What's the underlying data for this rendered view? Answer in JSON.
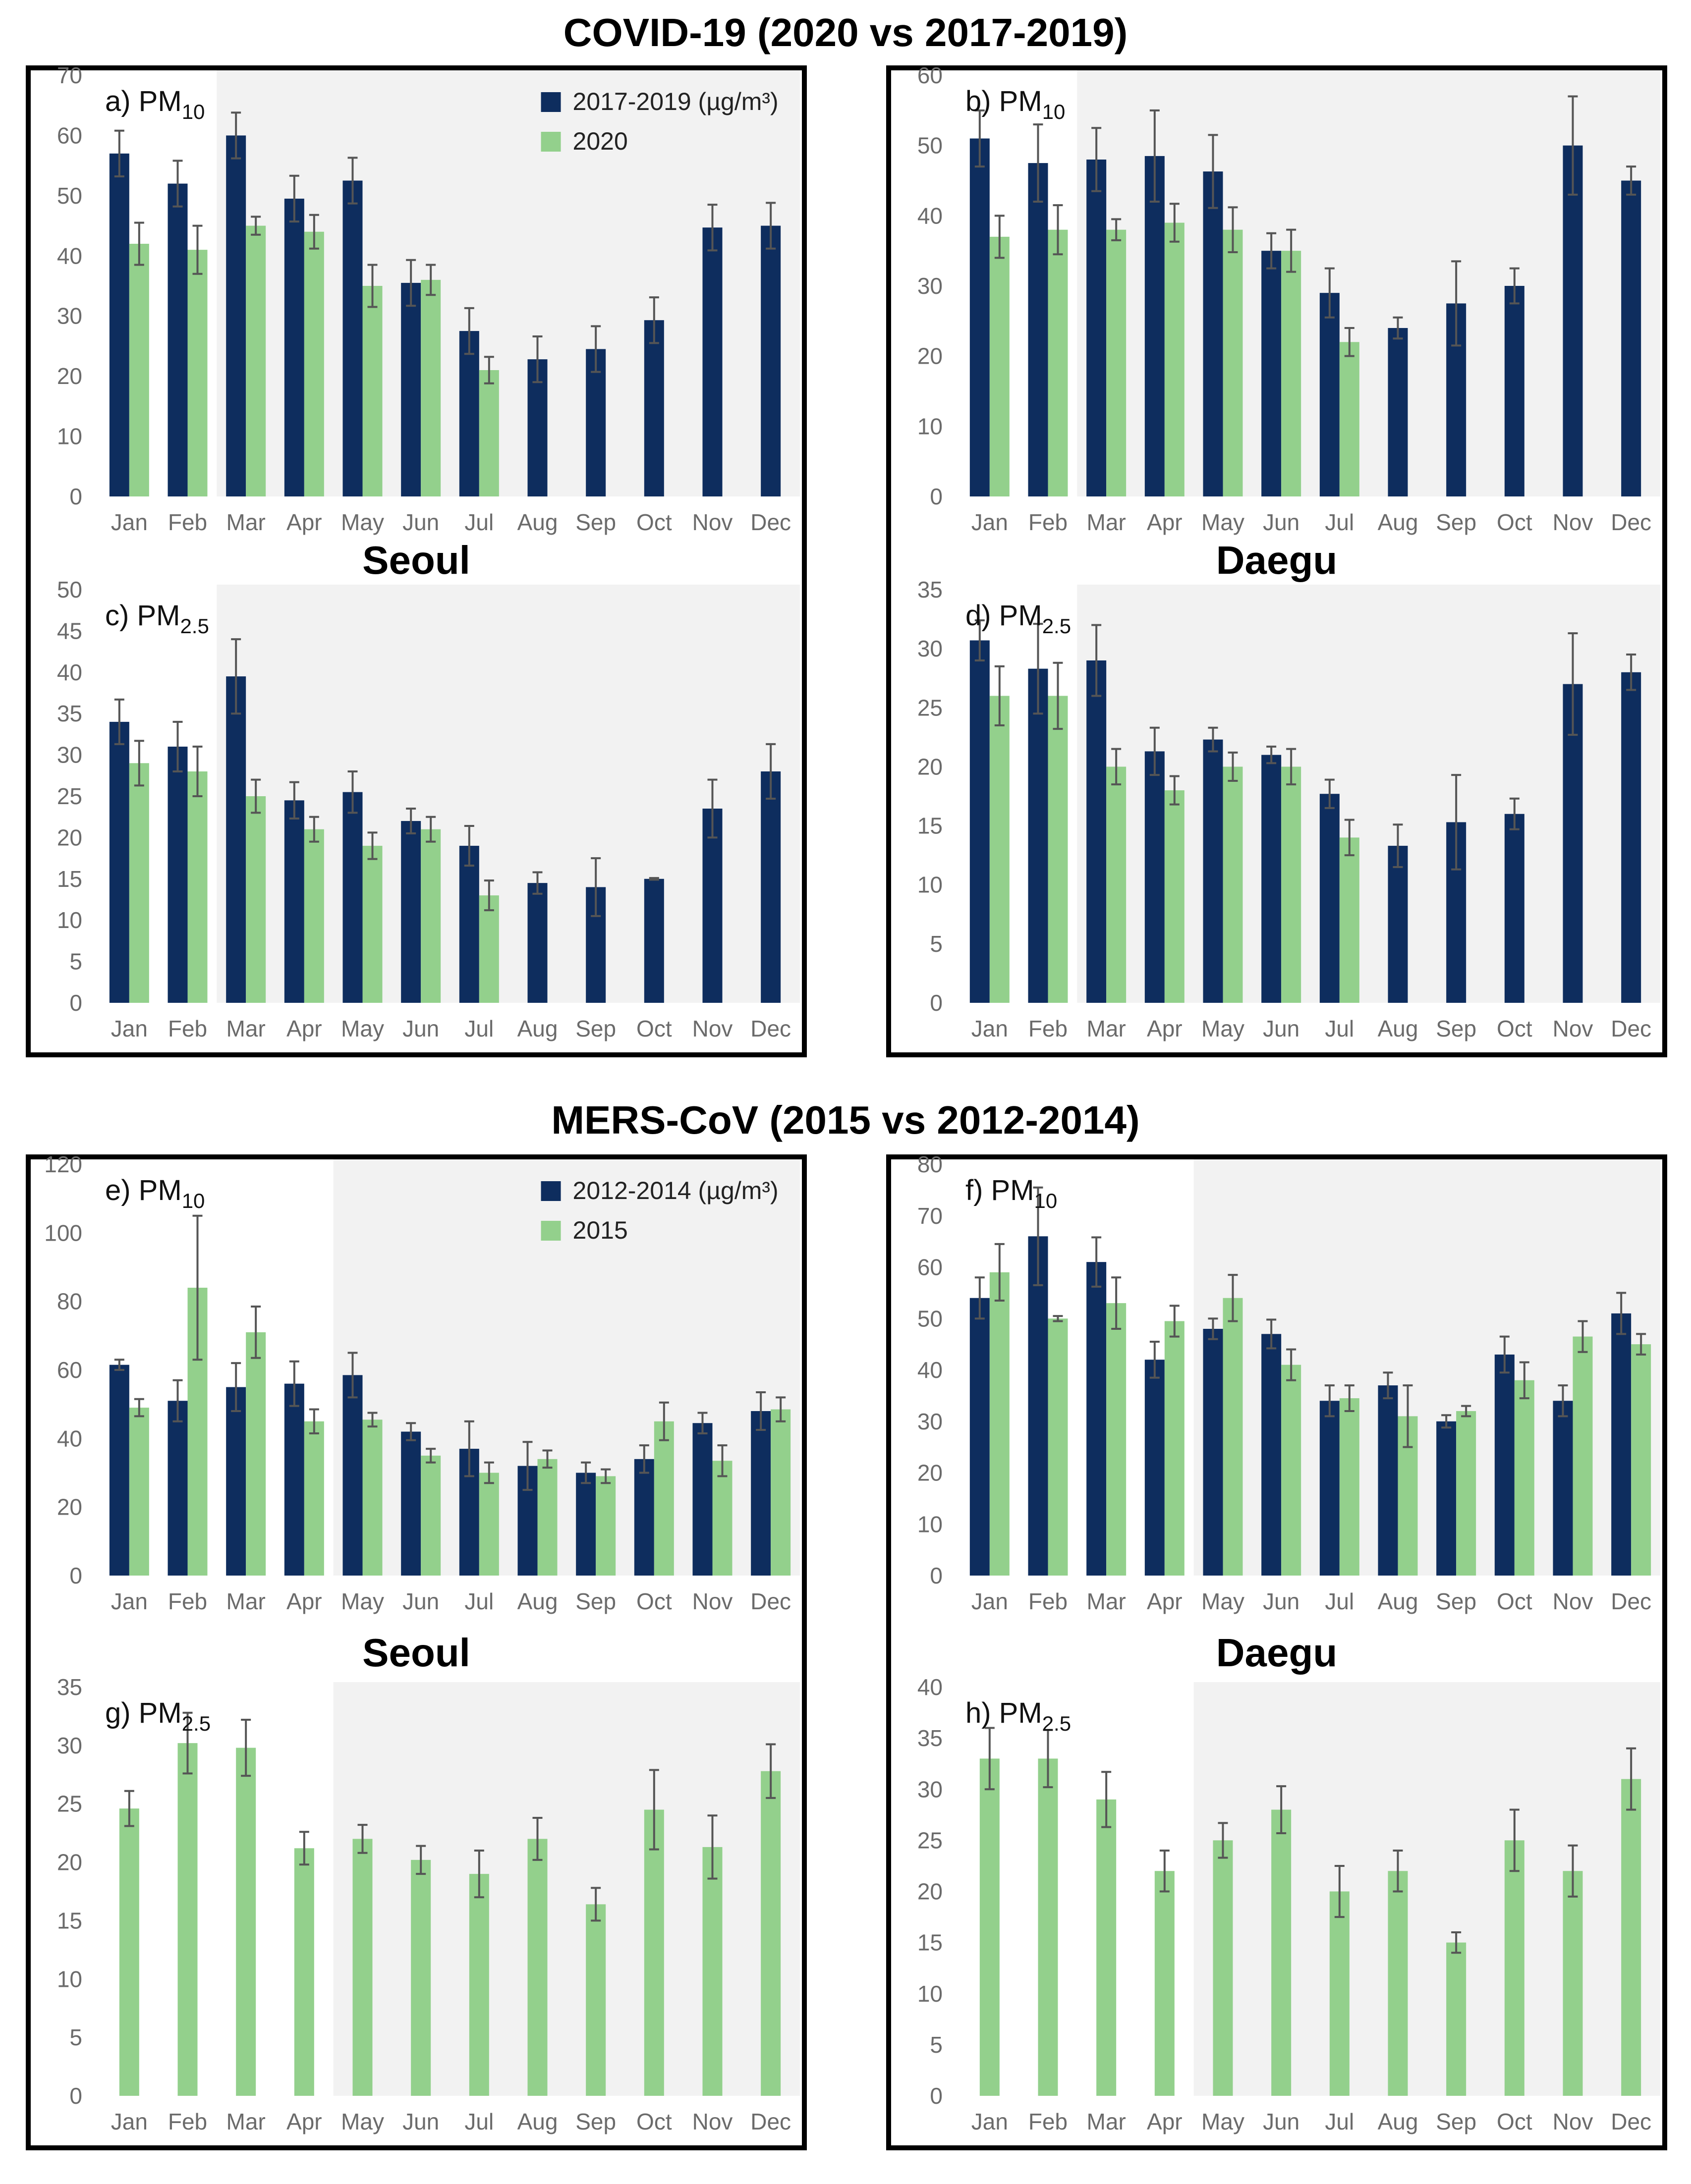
{
  "sections": [
    {
      "title": "COVID-19 (2020 vs 2017-2019)"
    },
    {
      "title": "MERS-CoV (2015 vs 2012-2014)"
    }
  ],
  "cities": [
    "Seoul",
    "Daegu",
    "Seoul",
    "Daegu"
  ],
  "colors": {
    "baseline": "#0e2d5e",
    "event": "#93d08c",
    "shade": "#f2f2f2",
    "error": "#555555"
  },
  "legends": [
    {
      "baseline": "2017-2019 (µg/m³)",
      "event": "2020"
    },
    {
      "baseline": "2012-2014 (µg/m³)",
      "event": "2015"
    }
  ],
  "chart_data": [
    {
      "id": "a",
      "type": "bar",
      "label": "a) PM",
      "sub": "10",
      "categories": [
        "Jan",
        "Feb",
        "Mar",
        "Apr",
        "May",
        "Jun",
        "Jul",
        "Aug",
        "Sep",
        "Oct",
        "Nov",
        "Dec"
      ],
      "ylim": [
        0,
        70
      ],
      "ystep": 10,
      "shade_from": "Mar",
      "legend": 0,
      "series": [
        {
          "values": [
            57,
            52,
            60,
            49.5,
            52.5,
            35.5,
            27.5,
            22.8,
            24.5,
            29.3,
            44.7,
            45
          ],
          "errors": [
            3.8,
            3.8,
            3.8,
            3.8,
            3.8,
            3.8,
            3.8,
            3.8,
            3.8,
            3.8,
            3.8,
            3.8
          ]
        },
        {
          "values": [
            42,
            41,
            45,
            44,
            35,
            36,
            21,
            null,
            null,
            null,
            null,
            null
          ],
          "errors": [
            3.5,
            4,
            1.5,
            2.8,
            3.5,
            2.5,
            2.2,
            null,
            null,
            null,
            null,
            null
          ]
        }
      ]
    },
    {
      "id": "b",
      "type": "bar",
      "label": "b) PM",
      "sub": "10",
      "categories": [
        "Jan",
        "Feb",
        "Mar",
        "Apr",
        "May",
        "Jun",
        "Jul",
        "Aug",
        "Sep",
        "Oct",
        "Nov",
        "Dec"
      ],
      "ylim": [
        0,
        60
      ],
      "ystep": 10,
      "shade_from": "Mar",
      "legend": null,
      "series": [
        {
          "values": [
            51,
            47.5,
            48,
            48.5,
            46.3,
            35,
            29,
            24,
            27.5,
            30,
            50,
            45
          ],
          "errors": [
            4,
            5.5,
            4.5,
            6.5,
            5.2,
            2.5,
            3.5,
            1.5,
            6,
            2.5,
            7,
            2
          ]
        },
        {
          "values": [
            37,
            38,
            38,
            39,
            38,
            35,
            22,
            null,
            null,
            null,
            null,
            null
          ],
          "errors": [
            3,
            3.5,
            1.5,
            2.7,
            3.2,
            3,
            2,
            null,
            null,
            null,
            null,
            null
          ]
        }
      ]
    },
    {
      "id": "c",
      "type": "bar",
      "label": "c) PM",
      "sub": "2.5",
      "categories": [
        "Jan",
        "Feb",
        "Mar",
        "Apr",
        "May",
        "Jun",
        "Jul",
        "Aug",
        "Sep",
        "Oct",
        "Nov",
        "Dec"
      ],
      "ylim": [
        0,
        50
      ],
      "ystep": 5,
      "shade_from": "Mar",
      "legend": null,
      "series": [
        {
          "values": [
            34,
            31,
            39.5,
            24.5,
            25.5,
            22,
            19,
            14.5,
            14,
            15,
            23.5,
            28
          ],
          "errors": [
            2.7,
            3,
            4.5,
            2.2,
            2.5,
            1.5,
            2.4,
            1.3,
            3.5,
            0.1,
            3.5,
            3.3
          ]
        },
        {
          "values": [
            29,
            28,
            25,
            21,
            19,
            21,
            13,
            null,
            null,
            null,
            null,
            null
          ],
          "errors": [
            2.7,
            3,
            2,
            1.5,
            1.6,
            1.5,
            1.8,
            null,
            null,
            null,
            null,
            null
          ]
        }
      ]
    },
    {
      "id": "d",
      "type": "bar",
      "label": "d) PM",
      "sub": "2.5",
      "categories": [
        "Jan",
        "Feb",
        "Mar",
        "Apr",
        "May",
        "Jun",
        "Jul",
        "Aug",
        "Sep",
        "Oct",
        "Nov",
        "Dec"
      ],
      "ylim": [
        0,
        35
      ],
      "ystep": 5,
      "shade_from": "Mar",
      "legend": null,
      "series": [
        {
          "values": [
            30.7,
            28.3,
            29,
            21.3,
            22.3,
            21,
            17.7,
            13.3,
            15.3,
            16,
            27,
            28
          ],
          "errors": [
            1.7,
            3.8,
            3,
            2,
            1,
            0.7,
            1.2,
            1.8,
            4,
            1.3,
            4.3,
            1.5
          ]
        },
        {
          "values": [
            26,
            26,
            20,
            18,
            20,
            20,
            14,
            null,
            null,
            null,
            null,
            null
          ],
          "errors": [
            2.5,
            2.8,
            1.5,
            1.2,
            1.2,
            1.5,
            1.5,
            null,
            null,
            null,
            null,
            null
          ]
        }
      ]
    },
    {
      "id": "e",
      "type": "bar",
      "label": "e) PM",
      "sub": "10",
      "categories": [
        "Jan",
        "Feb",
        "Mar",
        "Apr",
        "May",
        "Jun",
        "Jul",
        "Aug",
        "Sep",
        "Oct",
        "Nov",
        "Dec"
      ],
      "ylim": [
        0,
        120
      ],
      "ystep": 20,
      "shade_from": "May",
      "legend": 1,
      "series": [
        {
          "values": [
            61.5,
            51,
            55,
            56,
            58.5,
            42,
            37,
            32,
            30,
            34,
            44.5,
            48
          ],
          "errors": [
            1.5,
            6,
            7,
            6.5,
            6.5,
            2.5,
            8,
            7,
            3,
            4,
            3,
            5.5
          ]
        },
        {
          "values": [
            49,
            84,
            71,
            45,
            45.5,
            35,
            30,
            34,
            29,
            45,
            33.5,
            48.5
          ],
          "errors": [
            2.5,
            21,
            7.5,
            3.5,
            2,
            2,
            3,
            2.5,
            2,
            5.5,
            4.5,
            3.5
          ]
        }
      ]
    },
    {
      "id": "f",
      "type": "bar",
      "label": "f) PM",
      "sub": "10",
      "categories": [
        "Jan",
        "Feb",
        "Mar",
        "Apr",
        "May",
        "Jun",
        "Jul",
        "Aug",
        "Sep",
        "Oct",
        "Nov",
        "Dec"
      ],
      "ylim": [
        0,
        80
      ],
      "ystep": 10,
      "shade_from": "May",
      "legend": null,
      "series": [
        {
          "values": [
            54,
            66,
            61,
            42,
            48,
            47,
            34,
            37,
            30,
            43,
            34,
            51
          ],
          "errors": [
            4,
            9.5,
            4.8,
            3.5,
            2,
            2.8,
            3,
            2.5,
            1.2,
            3.5,
            3,
            4
          ]
        },
        {
          "values": [
            59,
            50,
            53,
            49.5,
            54,
            41,
            34.5,
            31,
            32,
            38,
            46.5,
            45
          ],
          "errors": [
            5.5,
            0.5,
            5,
            3,
            4.5,
            3,
            2.5,
            6,
            1,
            3.5,
            3,
            2
          ]
        }
      ]
    },
    {
      "id": "g",
      "type": "bar",
      "label": "g) PM",
      "sub": "2.5",
      "categories": [
        "Jan",
        "Feb",
        "Mar",
        "Apr",
        "May",
        "Jun",
        "Jul",
        "Aug",
        "Sep",
        "Oct",
        "Nov",
        "Dec"
      ],
      "ylim": [
        0,
        35
      ],
      "ystep": 5,
      "shade_from": "May",
      "legend": null,
      "series": [
        {
          "values": [
            null,
            null,
            null,
            null,
            null,
            null,
            null,
            null,
            null,
            null,
            null,
            null
          ],
          "errors": [
            null,
            null,
            null,
            null,
            null,
            null,
            null,
            null,
            null,
            null,
            null,
            null
          ]
        },
        {
          "values": [
            24.6,
            30.2,
            29.8,
            21.2,
            22,
            20.2,
            19,
            22,
            16.4,
            24.5,
            21.3,
            27.8
          ],
          "errors": [
            1.5,
            2.6,
            2.4,
            1.4,
            1.2,
            1.2,
            2,
            1.8,
            1.4,
            3.4,
            2.7,
            2.3
          ]
        }
      ]
    },
    {
      "id": "h",
      "type": "bar",
      "label": "h) PM",
      "sub": "2.5",
      "categories": [
        "Jan",
        "Feb",
        "Mar",
        "Apr",
        "May",
        "Jun",
        "Jul",
        "Aug",
        "Sep",
        "Oct",
        "Nov",
        "Dec"
      ],
      "ylim": [
        0,
        40
      ],
      "ystep": 5,
      "shade_from": "May",
      "legend": null,
      "series": [
        {
          "values": [
            null,
            null,
            null,
            null,
            null,
            null,
            null,
            null,
            null,
            null,
            null,
            null
          ],
          "errors": [
            null,
            null,
            null,
            null,
            null,
            null,
            null,
            null,
            null,
            null,
            null,
            null
          ]
        },
        {
          "values": [
            33,
            33,
            29,
            22,
            25,
            28,
            20,
            22,
            15,
            25,
            22,
            31
          ],
          "errors": [
            3,
            2.8,
            2.7,
            2,
            1.7,
            2.3,
            2.5,
            2,
            1,
            3,
            2.5,
            3
          ]
        }
      ]
    }
  ]
}
